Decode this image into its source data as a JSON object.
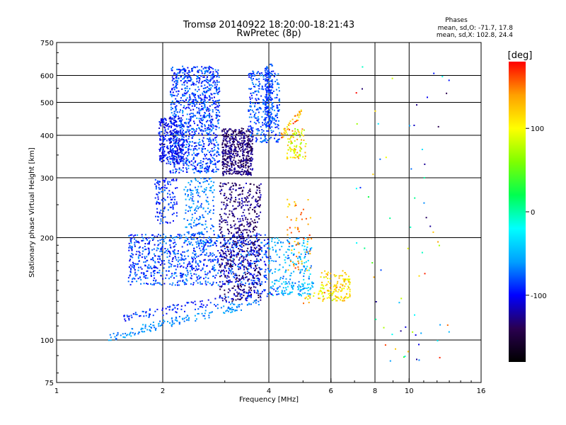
{
  "chart_data": {
    "type": "scatter",
    "title": "Tromsø 20140922 18:20:00-18:21:43",
    "subtitle": "RwPretec (8p)",
    "annotation": {
      "heading": "Phases",
      "line1": "mean, sd,O: -71.7, 17.8",
      "line2": "mean, sd,X: 102.8, 24.4"
    },
    "xlabel": "Frequency [MHz]",
    "ylabel": "Stationary phase Virtual Height [km]",
    "xscale": "log",
    "yscale": "log",
    "xlim": [
      1,
      16
    ],
    "ylim": [
      75,
      750
    ],
    "x_ticks": [
      {
        "v": 1,
        "label": "1"
      },
      {
        "v": 2,
        "label": "2"
      },
      {
        "v": 4,
        "label": "4"
      },
      {
        "v": 6,
        "label": "6"
      },
      {
        "v": 8,
        "label": "8"
      },
      {
        "v": 10,
        "label": "10"
      },
      {
        "v": 16,
        "label": "16"
      }
    ],
    "y_ticks": [
      {
        "v": 75,
        "label": "75"
      },
      {
        "v": 100,
        "label": "100"
      },
      {
        "v": 200,
        "label": "200"
      },
      {
        "v": 300,
        "label": "300"
      },
      {
        "v": 400,
        "label": "400"
      },
      {
        "v": 500,
        "label": "500"
      },
      {
        "v": 600,
        "label": "600"
      },
      {
        "v": 750,
        "label": "750"
      }
    ],
    "x_grid": [
      2,
      4,
      6,
      8,
      10
    ],
    "y_grid": [
      100,
      200,
      300,
      400,
      500,
      600
    ],
    "grid": true,
    "colorbar": {
      "label": "[deg]",
      "range": [
        -180,
        180
      ],
      "ticks": [
        {
          "v": 100,
          "label": "100"
        },
        {
          "v": 0,
          "label": "0"
        },
        {
          "v": -100,
          "label": "-100"
        }
      ],
      "colormap": [
        "#000000",
        "#2a0050",
        "#0000ff",
        "#00a0ff",
        "#00ffff",
        "#00ff50",
        "#7fff00",
        "#ffff00",
        "#ffa000",
        "#ff0000"
      ]
    },
    "point_groups": [
      {
        "f": [
          2.1,
          2.9
        ],
        "h": [
          310,
          640
        ],
        "phase": [
          -110,
          -60
        ],
        "n": 1000
      },
      {
        "f": [
          1.95,
          2.3
        ],
        "h": [
          330,
          450
        ],
        "phase": [
          -120,
          -80
        ],
        "n": 300
      },
      {
        "f": [
          2.95,
          3.6
        ],
        "h": [
          305,
          420
        ],
        "phase": [
          -150,
          -115
        ],
        "n": 500
      },
      {
        "f": [
          3.5,
          4.3
        ],
        "h": [
          380,
          620
        ],
        "phase": [
          -100,
          -60
        ],
        "n": 300
      },
      {
        "f": [
          3.9,
          4.1
        ],
        "h": [
          420,
          650
        ],
        "phase": [
          -100,
          -70
        ],
        "n": 150
      },
      {
        "f": [
          4.5,
          5.1
        ],
        "h": [
          340,
          420
        ],
        "phase": [
          60,
          150
        ],
        "n": 90
      },
      {
        "f": [
          1.9,
          2.2
        ],
        "h": [
          220,
          300
        ],
        "phase": [
          -110,
          -70
        ],
        "n": 120
      },
      {
        "f": [
          2.3,
          2.8
        ],
        "h": [
          190,
          300
        ],
        "phase": [
          -90,
          -50
        ],
        "n": 200
      },
      {
        "f": [
          1.6,
          4.0
        ],
        "h": [
          145,
          205
        ],
        "phase": [
          -110,
          -60
        ],
        "n": 900
      },
      {
        "f": [
          2.9,
          3.8
        ],
        "h": [
          130,
          290
        ],
        "phase": [
          -150,
          -110
        ],
        "n": 600
      },
      {
        "f": [
          4.0,
          5.3
        ],
        "h": [
          135,
          200
        ],
        "phase": [
          -80,
          -30
        ],
        "n": 200
      },
      {
        "f": [
          4.5,
          5.3
        ],
        "h": [
          160,
          260
        ],
        "phase": [
          110,
          170
        ],
        "n": 60
      },
      {
        "f": [
          5.6,
          6.8
        ],
        "h": [
          130,
          160
        ],
        "phase": [
          80,
          140
        ],
        "n": 120
      },
      {
        "f": [
          7.0,
          13.0
        ],
        "h": [
          85,
          650
        ],
        "phase": [
          -150,
          180
        ],
        "n": 70
      }
    ],
    "trace_lines": [
      {
        "from": [
          1.55,
          116
        ],
        "to": [
          4.3,
          140
        ],
        "phase": [
          -110,
          -70
        ],
        "n": 130
      },
      {
        "from": [
          1.4,
          102
        ],
        "to": [
          3.8,
          130
        ],
        "phase": [
          -80,
          -50
        ],
        "n": 160
      },
      {
        "from": [
          4.2,
          138
        ],
        "to": [
          5.4,
          145
        ],
        "phase": [
          -70,
          -30
        ],
        "n": 40
      },
      {
        "from": [
          5.0,
          130
        ],
        "to": [
          6.8,
          148
        ],
        "phase": [
          80,
          160
        ],
        "n": 40
      },
      {
        "from": [
          4.3,
          395
        ],
        "to": [
          4.95,
          470
        ],
        "phase": [
          90,
          170
        ],
        "n": 40
      }
    ]
  }
}
